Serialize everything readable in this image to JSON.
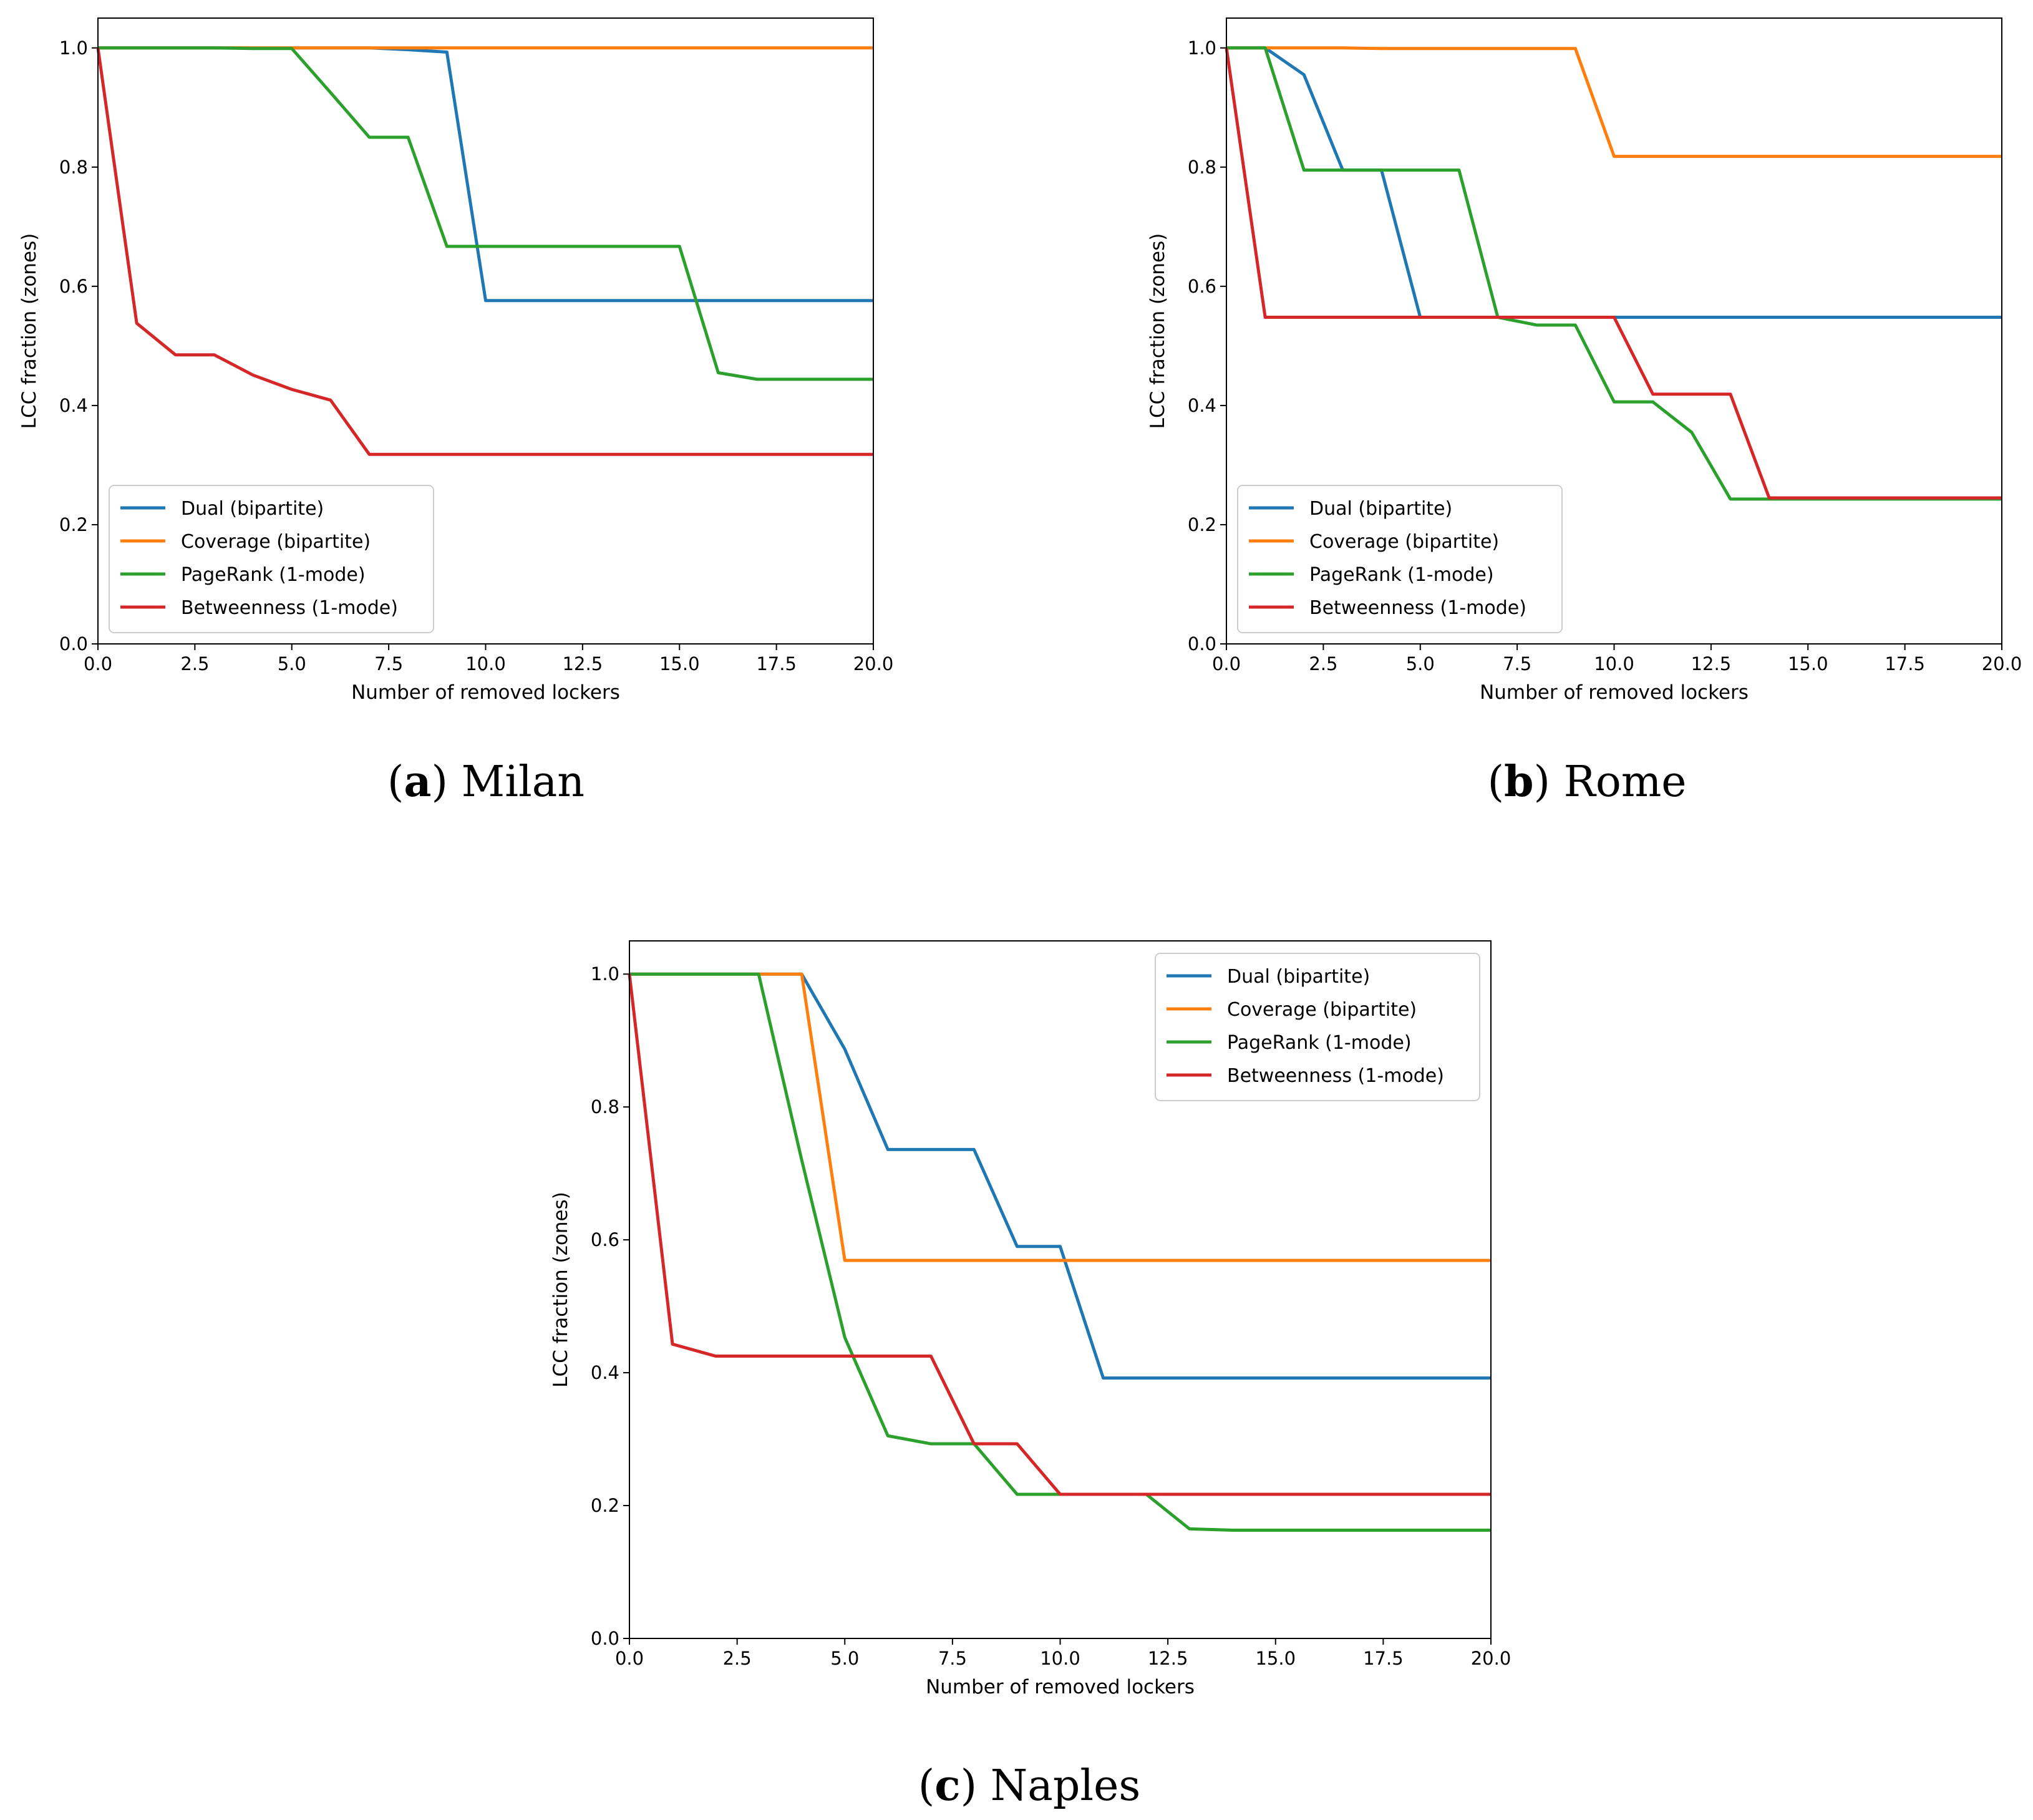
{
  "colors": {
    "Dual (bipartite)": "#1f77b4",
    "Coverage (bipartite)": "#ff7f0e",
    "PageRank (1-mode)": "#2ca02c",
    "Betweenness (1-mode)": "#d62728"
  },
  "chart_data": [
    {
      "type": "line",
      "caption_letter": "a",
      "caption_name": "Milan",
      "xlabel": "Number of removed lockers",
      "ylabel": "LCC fraction (zones)",
      "xlim": [
        0,
        20
      ],
      "ylim": [
        0,
        1.05
      ],
      "xticks": [
        "0.0",
        "2.5",
        "5.0",
        "7.5",
        "10.0",
        "12.5",
        "15.0",
        "17.5",
        "20.0"
      ],
      "yticks": [
        "0.0",
        "0.2",
        "0.4",
        "0.6",
        "0.8",
        "1.0"
      ],
      "legend": "lower-left",
      "x": [
        0,
        1,
        2,
        3,
        4,
        5,
        6,
        7,
        8,
        9,
        10,
        11,
        12,
        13,
        14,
        15,
        16,
        17,
        18,
        19,
        20
      ],
      "series": [
        {
          "name": "Dual (bipartite)",
          "values": [
            1,
            1,
            1,
            1,
            1,
            1,
            1,
            1,
            0.997,
            0.993,
            0.576,
            0.576,
            0.576,
            0.576,
            0.576,
            0.576,
            0.576,
            0.576,
            0.576,
            0.576,
            0.576
          ]
        },
        {
          "name": "Coverage (bipartite)",
          "values": [
            1,
            1,
            1,
            1,
            1,
            1,
            1,
            1,
            1,
            1,
            1,
            1,
            1,
            1,
            1,
            1,
            1,
            1,
            1,
            1,
            1
          ]
        },
        {
          "name": "PageRank (1-mode)",
          "values": [
            1,
            1,
            1,
            1,
            0.999,
            0.999,
            0.925,
            0.85,
            0.85,
            0.667,
            0.667,
            0.667,
            0.667,
            0.667,
            0.667,
            0.667,
            0.455,
            0.444,
            0.444,
            0.444,
            0.444
          ]
        },
        {
          "name": "Betweenness (1-mode)",
          "values": [
            1,
            0.538,
            0.485,
            0.485,
            0.451,
            0.427,
            0.409,
            0.318,
            0.318,
            0.318,
            0.318,
            0.318,
            0.318,
            0.318,
            0.318,
            0.318,
            0.318,
            0.318,
            0.318,
            0.318,
            0.318
          ]
        }
      ]
    },
    {
      "type": "line",
      "caption_letter": "b",
      "caption_name": "Rome",
      "xlabel": "Number of removed lockers",
      "ylabel": "LCC fraction (zones)",
      "xlim": [
        0,
        20
      ],
      "ylim": [
        0,
        1.05
      ],
      "xticks": [
        "0.0",
        "2.5",
        "5.0",
        "7.5",
        "10.0",
        "12.5",
        "15.0",
        "17.5",
        "20.0"
      ],
      "yticks": [
        "0.0",
        "0.2",
        "0.4",
        "0.6",
        "0.8",
        "1.0"
      ],
      "legend": "lower-left",
      "x": [
        0,
        1,
        2,
        3,
        4,
        5,
        6,
        7,
        8,
        9,
        10,
        11,
        12,
        13,
        14,
        15,
        16,
        17,
        18,
        19,
        20
      ],
      "series": [
        {
          "name": "Dual (bipartite)",
          "values": [
            1,
            1,
            0.955,
            0.795,
            0.795,
            0.548,
            0.548,
            0.548,
            0.548,
            0.548,
            0.548,
            0.548,
            0.548,
            0.548,
            0.548,
            0.548,
            0.548,
            0.548,
            0.548,
            0.548,
            0.548
          ]
        },
        {
          "name": "Coverage (bipartite)",
          "values": [
            1,
            1,
            1,
            1,
            0.999,
            0.999,
            0.999,
            0.999,
            0.999,
            0.999,
            0.818,
            0.818,
            0.818,
            0.818,
            0.818,
            0.818,
            0.818,
            0.818,
            0.818,
            0.818,
            0.818
          ]
        },
        {
          "name": "PageRank (1-mode)",
          "values": [
            1,
            1,
            0.795,
            0.795,
            0.795,
            0.795,
            0.795,
            0.548,
            0.535,
            0.535,
            0.406,
            0.406,
            0.355,
            0.243,
            0.243,
            0.243,
            0.243,
            0.243,
            0.243,
            0.243,
            0.243
          ]
        },
        {
          "name": "Betweenness (1-mode)",
          "values": [
            1,
            0.548,
            0.548,
            0.548,
            0.548,
            0.548,
            0.548,
            0.548,
            0.548,
            0.548,
            0.548,
            0.419,
            0.419,
            0.419,
            0.245,
            0.245,
            0.245,
            0.245,
            0.245,
            0.245,
            0.245
          ]
        }
      ]
    },
    {
      "type": "line",
      "caption_letter": "c",
      "caption_name": "Naples",
      "xlabel": "Number of removed lockers",
      "ylabel": "LCC fraction (zones)",
      "xlim": [
        0,
        20
      ],
      "ylim": [
        0,
        1.05
      ],
      "xticks": [
        "0.0",
        "2.5",
        "5.0",
        "7.5",
        "10.0",
        "12.5",
        "15.0",
        "17.5",
        "20.0"
      ],
      "yticks": [
        "0.0",
        "0.2",
        "0.4",
        "0.6",
        "0.8",
        "1.0"
      ],
      "legend": "upper-right",
      "x": [
        0,
        1,
        2,
        3,
        4,
        5,
        6,
        7,
        8,
        9,
        10,
        11,
        12,
        13,
        14,
        15,
        16,
        17,
        18,
        19,
        20
      ],
      "series": [
        {
          "name": "Dual (bipartite)",
          "values": [
            1,
            1,
            1,
            1,
            1,
            0.887,
            0.736,
            0.736,
            0.736,
            0.59,
            0.59,
            0.392,
            0.392,
            0.392,
            0.392,
            0.392,
            0.392,
            0.392,
            0.392,
            0.392,
            0.392
          ]
        },
        {
          "name": "Coverage (bipartite)",
          "values": [
            1,
            1,
            1,
            1,
            1,
            0.569,
            0.569,
            0.569,
            0.569,
            0.569,
            0.569,
            0.569,
            0.569,
            0.569,
            0.569,
            0.569,
            0.569,
            0.569,
            0.569,
            0.569,
            0.569
          ]
        },
        {
          "name": "PageRank (1-mode)",
          "values": [
            1,
            1,
            1,
            1,
            0.72,
            0.453,
            0.305,
            0.293,
            0.293,
            0.217,
            0.217,
            0.217,
            0.217,
            0.165,
            0.163,
            0.163,
            0.163,
            0.163,
            0.163,
            0.163,
            0.163
          ]
        },
        {
          "name": "Betweenness (1-mode)",
          "values": [
            1,
            0.443,
            0.425,
            0.425,
            0.425,
            0.425,
            0.425,
            0.425,
            0.293,
            0.293,
            0.217,
            0.217,
            0.217,
            0.217,
            0.217,
            0.217,
            0.217,
            0.217,
            0.217,
            0.217,
            0.217
          ]
        }
      ]
    }
  ]
}
